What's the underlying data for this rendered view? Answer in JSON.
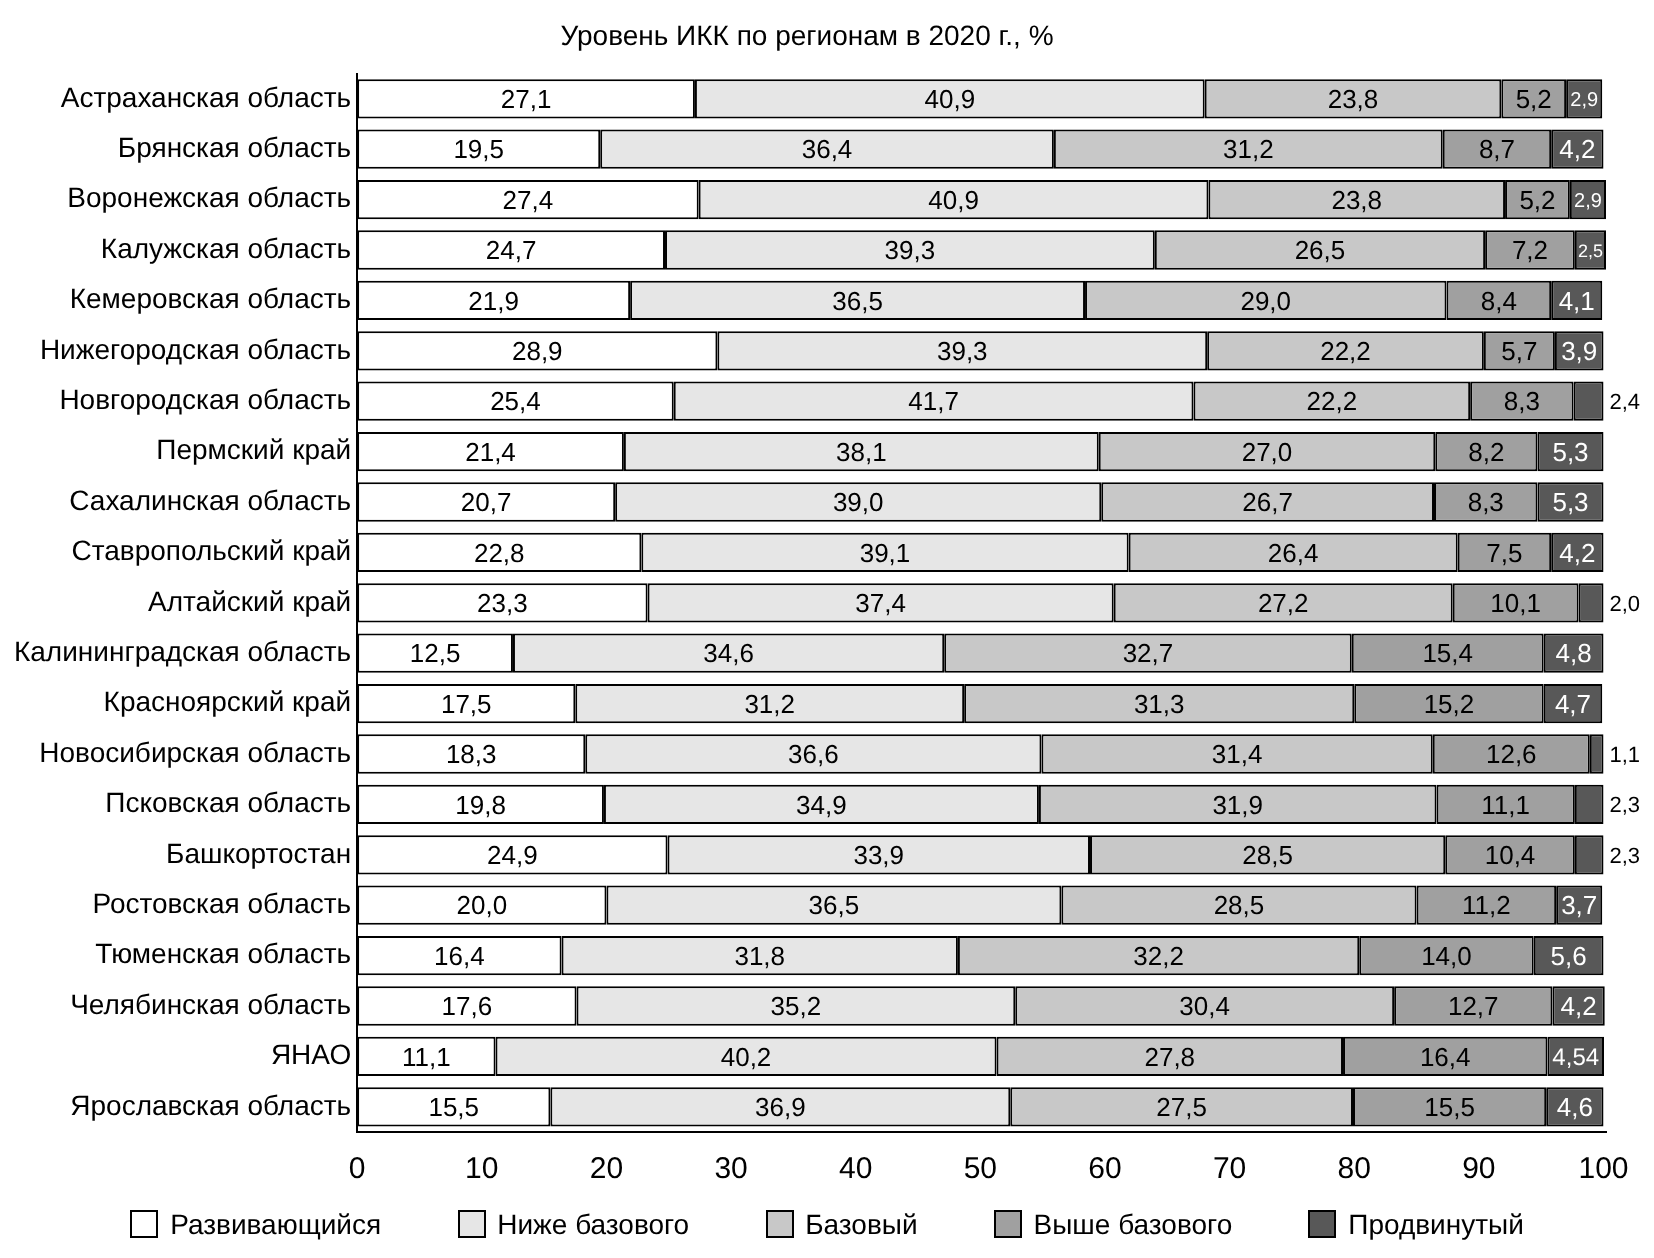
{
  "chart_data": {
    "type": "bar",
    "orientation": "horizontal",
    "stacked": true,
    "title": "Уровень ИКК по регионам в 2020 г., %",
    "categories": [
      "Астраханская область",
      "Брянская область",
      "Воронежская область",
      "Калужская область",
      "Кемеровская область",
      "Нижегородская область",
      "Новгородская область",
      "Пермский край",
      "Сахалинская область",
      "Ставропольский край",
      "Алтайский край",
      "Калининградская область",
      "Красноярский край",
      "Новосибирская область",
      "Псковская область",
      "Башкортостан",
      "Ростовская область",
      "Тюменская область",
      "Челябинская область",
      "ЯНАО",
      "Ярославская область"
    ],
    "series": [
      {
        "name": "Развивающийся",
        "color": "#ffffff",
        "values": [
          27.1,
          19.5,
          27.4,
          24.7,
          21.9,
          28.9,
          25.4,
          21.4,
          20.7,
          22.8,
          23.3,
          12.5,
          17.5,
          18.3,
          19.8,
          24.9,
          20.0,
          16.4,
          17.6,
          11.1,
          15.5
        ],
        "value_labels": [
          "27,1",
          "19,5",
          "27,4",
          "24,7",
          "21,9",
          "28,9",
          "25,4",
          "21,4",
          "20,7",
          "22,8",
          "23,3",
          "12,5",
          "17,5",
          "18,3",
          "19,8",
          "24,9",
          "20,0",
          "16,4",
          "17,6",
          "11,1",
          "15,5"
        ]
      },
      {
        "name": "Ниже базового",
        "color": "#e6e6e6",
        "values": [
          40.9,
          36.4,
          40.9,
          39.3,
          36.5,
          39.3,
          41.7,
          38.1,
          39.0,
          39.1,
          37.4,
          34.6,
          31.2,
          36.6,
          34.9,
          33.9,
          36.5,
          31.8,
          35.2,
          40.2,
          36.9
        ],
        "value_labels": [
          "40,9",
          "36,4",
          "40,9",
          "39,3",
          "36,5",
          "39,3",
          "41,7",
          "38,1",
          "39,0",
          "39,1",
          "37,4",
          "34,6",
          "31,2",
          "36,6",
          "34,9",
          "33,9",
          "36,5",
          "31,8",
          "35,2",
          "40,2",
          "36,9"
        ]
      },
      {
        "name": "Базовый",
        "color": "#c8c8c8",
        "values": [
          23.8,
          31.2,
          23.8,
          26.5,
          29.0,
          22.2,
          22.2,
          27.0,
          26.7,
          26.4,
          27.2,
          32.7,
          31.3,
          31.4,
          31.9,
          28.5,
          28.5,
          32.2,
          30.4,
          27.8,
          27.5
        ],
        "value_labels": [
          "23,8",
          "31,2",
          "23,8",
          "26,5",
          "29,0",
          "22,2",
          "22,2",
          "27,0",
          "26,7",
          "26,4",
          "27,2",
          "32,7",
          "31,3",
          "31,4",
          "31,9",
          "28,5",
          "28,5",
          "32,2",
          "30,4",
          "27,8",
          "27,5"
        ]
      },
      {
        "name": "Выше базового",
        "color": "#a0a0a0",
        "values": [
          5.2,
          8.7,
          5.2,
          7.2,
          8.4,
          5.7,
          8.3,
          8.2,
          8.3,
          7.5,
          10.1,
          15.4,
          15.2,
          12.6,
          11.1,
          10.4,
          11.2,
          14.0,
          12.7,
          16.4,
          15.5
        ],
        "value_labels": [
          "5,2",
          "8,7",
          "5,2",
          "7,2",
          "8,4",
          "5,7",
          "8,3",
          "8,2",
          "8,3",
          "7,5",
          "10,1",
          "15,4",
          "15,2",
          "12,6",
          "11,1",
          "10,4",
          "11,2",
          "14,0",
          "12,7",
          "16,4",
          "15,5"
        ]
      },
      {
        "name": "Продвинутый",
        "color": "#585858",
        "values": [
          2.9,
          4.2,
          2.9,
          2.5,
          4.1,
          3.9,
          2.4,
          5.3,
          5.3,
          4.2,
          2.0,
          4.8,
          4.7,
          1.1,
          2.3,
          2.3,
          3.7,
          5.6,
          4.2,
          4.54,
          4.6
        ],
        "value_labels": [
          "2,9",
          "4,2",
          "2,9",
          "2,5",
          "4,1",
          "3,9",
          "2,4",
          "5,3",
          "5,3",
          "4,2",
          "2,0",
          "4,8",
          "4,7",
          "1,1",
          "2,3",
          "2,3",
          "3,7",
          "5,6",
          "4,2",
          "4,54",
          "4,6"
        ]
      }
    ],
    "xlim": [
      0,
      100.2
    ],
    "xticks": [
      0,
      10,
      20,
      30,
      40,
      50,
      60,
      70,
      80,
      90,
      100
    ],
    "grid": false,
    "legend": "bottom"
  }
}
